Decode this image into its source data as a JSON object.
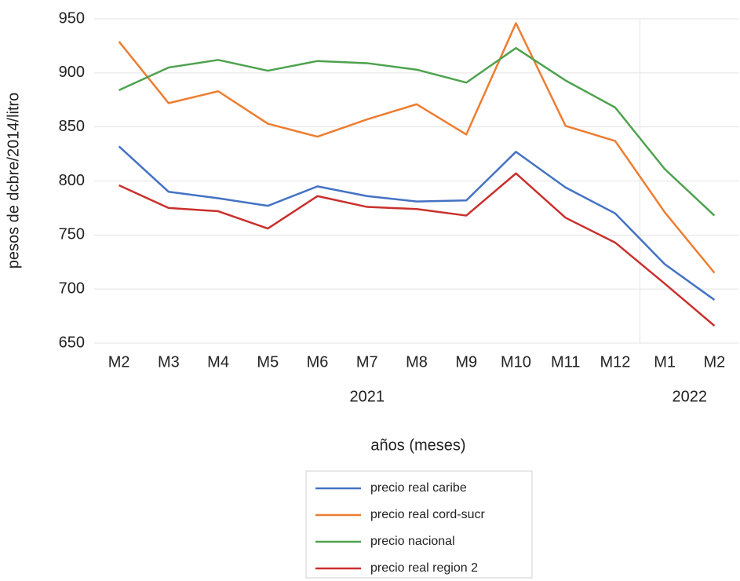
{
  "chart_data": {
    "type": "line",
    "y_label": "pesos de dcbre/2014/litro",
    "x_label": "años (meses)",
    "categories": [
      "M2",
      "M3",
      "M4",
      "M5",
      "M6",
      "M7",
      "M8",
      "M9",
      "M10",
      "M11",
      "M12",
      "M1",
      "M2"
    ],
    "groups": [
      {
        "name": "2021",
        "size": 11
      },
      {
        "name": "2022",
        "size": 2
      }
    ],
    "series": [
      {
        "name": "precio real caribe",
        "color": "#4472c4",
        "values": [
          832,
          790,
          784,
          777,
          795,
          786,
          781,
          782,
          827,
          794,
          770,
          723,
          690
        ]
      },
      {
        "name": "precio real cord-sucr",
        "color": "#ed7d31",
        "values": [
          929,
          872,
          883,
          853,
          841,
          857,
          871,
          843,
          946,
          851,
          837,
          771,
          715
        ]
      },
      {
        "name": "precio nacional",
        "color": "#4ea24e",
        "values": [
          884,
          905,
          912,
          902,
          911,
          909,
          903,
          891,
          923,
          893,
          868,
          811,
          768
        ]
      },
      {
        "name": "precio real region 2",
        "color": "#c9302c",
        "values": [
          796,
          775,
          772,
          756,
          786,
          776,
          774,
          768,
          807,
          766,
          743,
          705,
          666
        ]
      }
    ],
    "ylim": [
      650,
      950
    ],
    "yticks": [
      650,
      700,
      750,
      800,
      850,
      900,
      950
    ],
    "grid": true,
    "legend": "bottom"
  }
}
